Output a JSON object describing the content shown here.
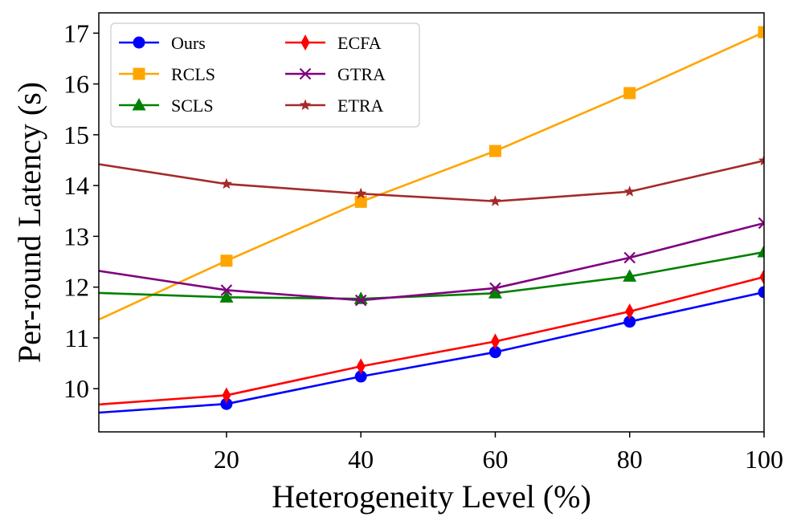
{
  "chart_data": {
    "type": "line",
    "title": "",
    "xlabel": "Heterogeneity Level (%)",
    "ylabel": "Per-round Latency (s)",
    "xlim": [
      1,
      100
    ],
    "ylim": [
      9.15,
      17.4
    ],
    "xticks": [
      20,
      40,
      60,
      80,
      100
    ],
    "yticks": [
      10,
      11,
      12,
      13,
      14,
      15,
      16,
      17
    ],
    "grid": false,
    "legend_position": "top-left",
    "legend_columns": 2,
    "x": [
      0,
      20,
      40,
      60,
      80,
      100
    ],
    "series": [
      {
        "name": "Ours",
        "color": "#0000ff",
        "marker": "circle",
        "values": [
          9.52,
          9.7,
          10.24,
          10.72,
          11.32,
          11.9
        ]
      },
      {
        "name": "RCLS",
        "color": "#ffa500",
        "marker": "square",
        "values": [
          11.3,
          12.52,
          13.68,
          14.68,
          15.82,
          17.02
        ]
      },
      {
        "name": "SCLS",
        "color": "#008000",
        "marker": "triangle",
        "values": [
          11.89,
          11.8,
          11.77,
          11.88,
          12.21,
          12.69
        ]
      },
      {
        "name": "ECFA",
        "color": "#ff0000",
        "marker": "diamond",
        "values": [
          9.68,
          9.87,
          10.44,
          10.93,
          11.52,
          12.2
        ]
      },
      {
        "name": "GTRA",
        "color": "#800080",
        "marker": "x",
        "values": [
          12.34,
          11.94,
          11.74,
          11.98,
          12.58,
          13.26
        ]
      },
      {
        "name": "ETRA",
        "color": "#a52a2a",
        "marker": "star",
        "values": [
          14.44,
          14.03,
          13.84,
          13.69,
          13.88,
          14.49
        ]
      }
    ]
  }
}
